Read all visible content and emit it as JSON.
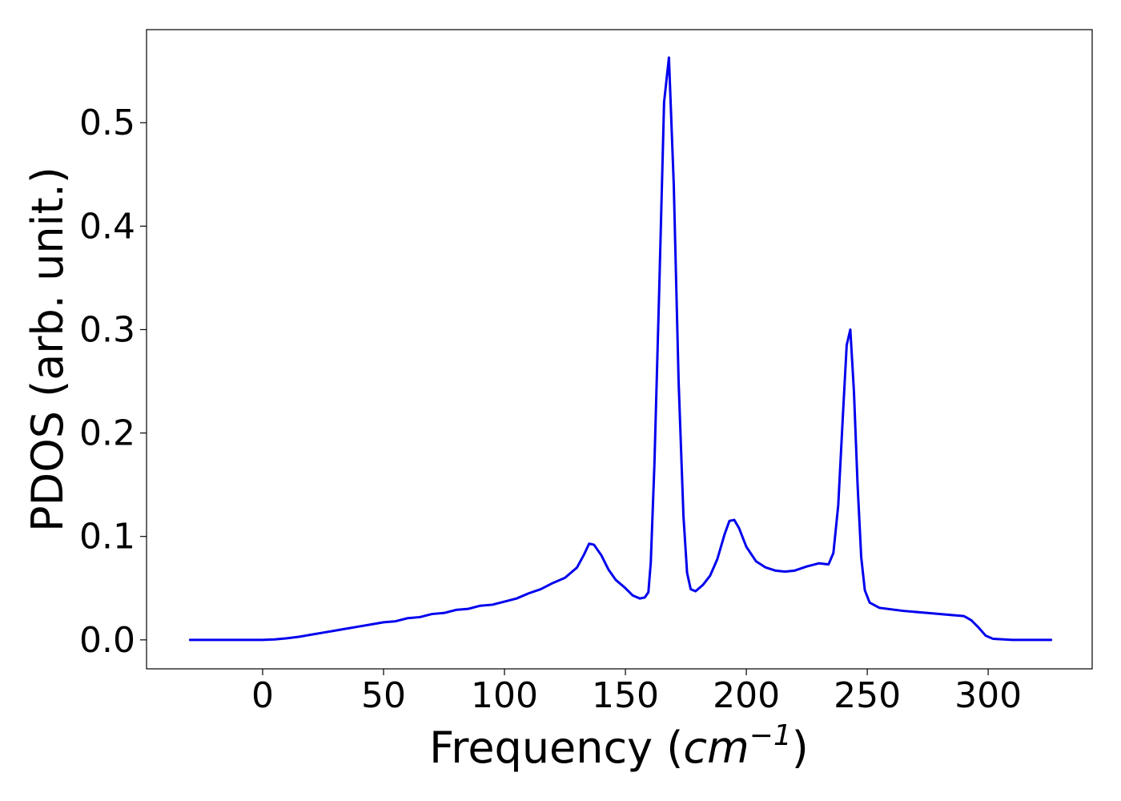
{
  "chart_data": {
    "type": "line",
    "title": "",
    "xlabel_text": "Frequency (",
    "xlabel_unit_base": "cm",
    "xlabel_unit_exp": "−1",
    "xlabel_close": ")",
    "ylabel": "PDOS (arb. unit.)",
    "xlim": [
      -48,
      343
    ],
    "ylim": [
      -0.028,
      0.59
    ],
    "xticks": [
      0,
      50,
      100,
      150,
      200,
      250,
      300
    ],
    "yticks": [
      0.0,
      0.1,
      0.2,
      0.3,
      0.4,
      0.5
    ],
    "xtick_labels": [
      "0",
      "50",
      "100",
      "150",
      "200",
      "250",
      "300"
    ],
    "ytick_labels": [
      "0.0",
      "0.1",
      "0.2",
      "0.3",
      "0.4",
      "0.5"
    ],
    "grid": false,
    "legend": "none",
    "series": [
      {
        "color": "#0000ee",
        "points": [
          [
            -30,
            0.0
          ],
          [
            -20,
            0.0
          ],
          [
            -10,
            0.0
          ],
          [
            0,
            0.0
          ],
          [
            5,
            0.0005
          ],
          [
            10,
            0.0015
          ],
          [
            15,
            0.003
          ],
          [
            20,
            0.005
          ],
          [
            25,
            0.007
          ],
          [
            30,
            0.009
          ],
          [
            35,
            0.011
          ],
          [
            40,
            0.013
          ],
          [
            45,
            0.015
          ],
          [
            50,
            0.017
          ],
          [
            55,
            0.018
          ],
          [
            60,
            0.021
          ],
          [
            65,
            0.022
          ],
          [
            70,
            0.025
          ],
          [
            75,
            0.026
          ],
          [
            80,
            0.029
          ],
          [
            85,
            0.03
          ],
          [
            90,
            0.033
          ],
          [
            95,
            0.034
          ],
          [
            100,
            0.037
          ],
          [
            105,
            0.04
          ],
          [
            110,
            0.045
          ],
          [
            115,
            0.049
          ],
          [
            120,
            0.055
          ],
          [
            125,
            0.06
          ],
          [
            130,
            0.07
          ],
          [
            133,
            0.083
          ],
          [
            135,
            0.093
          ],
          [
            137,
            0.092
          ],
          [
            140,
            0.082
          ],
          [
            143,
            0.068
          ],
          [
            146,
            0.058
          ],
          [
            150,
            0.05
          ],
          [
            153,
            0.043
          ],
          [
            156,
            0.04
          ],
          [
            158,
            0.041
          ],
          [
            159.5,
            0.046
          ],
          [
            160.5,
            0.075
          ],
          [
            162,
            0.17
          ],
          [
            164,
            0.34
          ],
          [
            166,
            0.52
          ],
          [
            168,
            0.563
          ],
          [
            170,
            0.44
          ],
          [
            172,
            0.25
          ],
          [
            174,
            0.12
          ],
          [
            175.5,
            0.065
          ],
          [
            177,
            0.049
          ],
          [
            179,
            0.047
          ],
          [
            182,
            0.053
          ],
          [
            185,
            0.062
          ],
          [
            188,
            0.078
          ],
          [
            191,
            0.102
          ],
          [
            193,
            0.115
          ],
          [
            195,
            0.116
          ],
          [
            197,
            0.108
          ],
          [
            200,
            0.09
          ],
          [
            204,
            0.076
          ],
          [
            208,
            0.07
          ],
          [
            212,
            0.067
          ],
          [
            216,
            0.066
          ],
          [
            220,
            0.067
          ],
          [
            225,
            0.071
          ],
          [
            230,
            0.074
          ],
          [
            234,
            0.073
          ],
          [
            236,
            0.084
          ],
          [
            238,
            0.13
          ],
          [
            240,
            0.22
          ],
          [
            241.5,
            0.285
          ],
          [
            243,
            0.3
          ],
          [
            244.5,
            0.24
          ],
          [
            246,
            0.15
          ],
          [
            247.5,
            0.08
          ],
          [
            249,
            0.048
          ],
          [
            251,
            0.036
          ],
          [
            255,
            0.031
          ],
          [
            265,
            0.028
          ],
          [
            275,
            0.026
          ],
          [
            285,
            0.024
          ],
          [
            290,
            0.023
          ],
          [
            293,
            0.019
          ],
          [
            296,
            0.012
          ],
          [
            299,
            0.004
          ],
          [
            302,
            0.001
          ],
          [
            310,
            0.0
          ],
          [
            326,
            0.0
          ]
        ]
      }
    ]
  }
}
